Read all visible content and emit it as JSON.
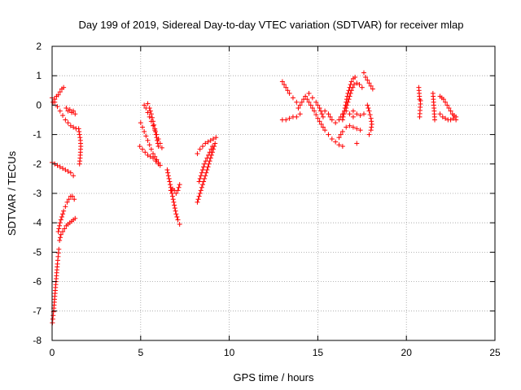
{
  "chart_data": {
    "type": "scatter",
    "title": "Day 199 of 2019, Sidereal Day-to-day VTEC variation (SDTVAR) for receiver mlap",
    "xlabel": "GPS time / hours",
    "ylabel": "SDTVAR / TECUs",
    "xlim": [
      0,
      25
    ],
    "ylim": [
      -8,
      2
    ],
    "xticks": [
      "0",
      "5",
      "10",
      "15",
      "20",
      "25"
    ],
    "yticks": [
      "-8",
      "-7",
      "-6",
      "-5",
      "-4",
      "-3",
      "-2",
      "-1",
      "0",
      "1",
      "2"
    ],
    "grid": true,
    "marker": "plus",
    "color": "#ff0000",
    "segments": [
      {
        "x": [
          0.0,
          0.15,
          0.3,
          0.45,
          0.6,
          0.75,
          0.9,
          1.05,
          1.2,
          1.35
        ],
        "y": [
          0.25,
          0.1,
          -0.05,
          -0.2,
          -0.35,
          -0.5,
          -0.6,
          -0.7,
          -0.75,
          -0.8
        ]
      },
      {
        "x": [
          0.05,
          0.15,
          0.25,
          0.35,
          0.45,
          0.55,
          0.65
        ],
        "y": [
          0.1,
          0.2,
          0.3,
          0.35,
          0.45,
          0.55,
          0.6
        ]
      },
      {
        "x": [
          0.8,
          0.9,
          1.0,
          1.1,
          1.2,
          1.3
        ],
        "y": [
          -0.1,
          -0.2,
          -0.15,
          -0.25,
          -0.2,
          -0.3
        ]
      },
      {
        "x": [
          1.5,
          1.55,
          1.6,
          1.62,
          1.6,
          1.58,
          1.55
        ],
        "y": [
          -0.8,
          -1.0,
          -1.2,
          -1.4,
          -1.6,
          -1.8,
          -2.0
        ]
      },
      {
        "x": [
          0.0,
          0.15,
          0.3,
          0.45,
          0.6,
          0.75,
          0.9,
          1.05,
          1.2
        ],
        "y": [
          -1.95,
          -2.0,
          -2.05,
          -2.1,
          -2.15,
          -2.2,
          -2.25,
          -2.3,
          -2.4
        ]
      },
      {
        "x": [
          0.02,
          0.06,
          0.1,
          0.14,
          0.18,
          0.22,
          0.26,
          0.3,
          0.34,
          0.38
        ],
        "y": [
          -7.4,
          -7.15,
          -6.9,
          -6.6,
          -6.3,
          -6.0,
          -5.7,
          -5.4,
          -5.15,
          -4.9
        ]
      },
      {
        "x": [
          0.42,
          0.5,
          0.6,
          0.7,
          0.8,
          0.9,
          1.0,
          1.1,
          1.2,
          1.3
        ],
        "y": [
          -4.6,
          -4.4,
          -4.3,
          -4.2,
          -4.1,
          -4.05,
          -4.0,
          -3.95,
          -3.9,
          -3.85
        ]
      },
      {
        "x": [
          0.35,
          0.45,
          0.55,
          0.65,
          0.75,
          0.85,
          0.95,
          1.05,
          1.15,
          1.25
        ],
        "y": [
          -4.3,
          -4.0,
          -3.8,
          -3.6,
          -3.45,
          -3.3,
          -3.2,
          -3.1,
          -3.1,
          -3.2
        ]
      },
      {
        "x": [
          5.0,
          5.1,
          5.2,
          5.3,
          5.4,
          5.5,
          5.6,
          5.7,
          5.8,
          5.9,
          6.0,
          6.1
        ],
        "y": [
          -0.6,
          -0.75,
          -0.9,
          -1.05,
          -1.2,
          -1.35,
          -1.5,
          -1.65,
          -1.75,
          -1.85,
          -1.95,
          -2.05
        ]
      },
      {
        "x": [
          4.95,
          5.1,
          5.25,
          5.4,
          5.55,
          5.7,
          5.85,
          6.0
        ],
        "y": [
          -1.4,
          -1.5,
          -1.6,
          -1.7,
          -1.75,
          -1.8,
          -1.9,
          -2.0
        ]
      },
      {
        "x": [
          5.2,
          5.3,
          5.4,
          5.5,
          5.6,
          5.7,
          5.8,
          5.9,
          6.0,
          6.1,
          6.2
        ],
        "y": [
          0.0,
          -0.1,
          -0.25,
          -0.4,
          -0.55,
          -0.7,
          -0.85,
          -1.0,
          -1.15,
          -1.3,
          -1.45
        ]
      },
      {
        "x": [
          5.4,
          5.5,
          5.6,
          5.7,
          5.8,
          5.9,
          6.0
        ],
        "y": [
          0.05,
          -0.1,
          -0.3,
          -0.55,
          -0.8,
          -1.1,
          -1.4
        ]
      },
      {
        "x": [
          6.5,
          6.6,
          6.7,
          6.8,
          6.9,
          7.0,
          7.1,
          7.2
        ],
        "y": [
          -2.2,
          -2.5,
          -2.8,
          -3.1,
          -3.4,
          -3.7,
          -3.9,
          -4.05
        ]
      },
      {
        "x": [
          6.7,
          6.8,
          6.9,
          7.0,
          7.1,
          7.2
        ],
        "y": [
          -2.9,
          -2.85,
          -2.9,
          -3.0,
          -2.9,
          -2.7
        ]
      },
      {
        "x": [
          8.2,
          8.3,
          8.4,
          8.5,
          8.6,
          8.7,
          8.8,
          8.9,
          9.0,
          9.1,
          9.2
        ],
        "y": [
          -3.3,
          -3.1,
          -2.9,
          -2.7,
          -2.5,
          -2.3,
          -2.1,
          -1.9,
          -1.7,
          -1.5,
          -1.3
        ]
      },
      {
        "x": [
          8.2,
          8.35,
          8.5,
          8.65,
          8.8,
          8.95,
          9.1,
          9.25
        ],
        "y": [
          -1.65,
          -1.5,
          -1.4,
          -1.3,
          -1.25,
          -1.2,
          -1.15,
          -1.1
        ]
      },
      {
        "x": [
          8.3,
          8.45,
          8.6,
          8.75,
          8.9,
          9.05
        ],
        "y": [
          -2.6,
          -2.3,
          -2.0,
          -1.8,
          -1.6,
          -1.4
        ]
      },
      {
        "x": [
          13.0,
          13.2,
          13.4,
          13.6,
          13.8
        ],
        "y": [
          0.8,
          0.6,
          0.4,
          0.25,
          0.1
        ]
      },
      {
        "x": [
          13.0,
          13.2,
          13.4,
          13.6,
          13.8,
          14.0
        ],
        "y": [
          -0.5,
          -0.5,
          -0.45,
          -0.4,
          -0.4,
          -0.3
        ]
      },
      {
        "x": [
          13.9,
          14.1,
          14.3,
          14.5,
          14.7,
          14.9,
          15.1,
          15.3
        ],
        "y": [
          -0.1,
          0.1,
          0.3,
          0.4,
          0.25,
          0.1,
          -0.1,
          -0.4
        ]
      },
      {
        "x": [
          14.4,
          14.6,
          14.8,
          15.0,
          15.2,
          15.4,
          15.6,
          15.8,
          16.0,
          16.2,
          16.4
        ],
        "y": [
          0.2,
          0.0,
          -0.2,
          -0.45,
          -0.65,
          -0.85,
          -1.0,
          -1.15,
          -1.25,
          -1.35,
          -1.4
        ]
      },
      {
        "x": [
          15.4,
          15.6,
          15.8,
          16.0,
          16.2,
          16.4,
          16.6,
          16.8,
          17.0
        ],
        "y": [
          -0.2,
          -0.3,
          -0.5,
          -0.6,
          -0.5,
          -0.3,
          -0.2,
          -0.3,
          -0.4
        ]
      },
      {
        "x": [
          16.2,
          16.4,
          16.6,
          16.8,
          17.0,
          17.2,
          17.4
        ],
        "y": [
          -1.1,
          -0.9,
          -0.75,
          -0.7,
          -0.75,
          -0.8,
          -0.85
        ]
      },
      {
        "x": [
          16.4,
          16.5,
          16.6,
          16.7,
          16.8,
          16.9,
          17.0,
          17.1
        ],
        "y": [
          -0.5,
          -0.2,
          0.1,
          0.4,
          0.6,
          0.8,
          0.9,
          0.95
        ]
      },
      {
        "x": [
          16.6,
          16.75,
          16.9,
          17.05,
          17.2,
          17.35,
          17.5
        ],
        "y": [
          -0.1,
          0.2,
          0.5,
          0.7,
          0.75,
          0.7,
          0.6
        ]
      },
      {
        "x": [
          17.0,
          17.2,
          17.4,
          17.6
        ],
        "y": [
          -0.2,
          -0.3,
          -0.35,
          -0.3
        ]
      },
      {
        "x": [
          17.2
        ],
        "y": [
          -1.3
        ]
      },
      {
        "x": [
          17.6,
          17.7,
          17.8,
          17.9,
          18.0,
          18.1
        ],
        "y": [
          1.1,
          0.95,
          0.85,
          0.75,
          0.65,
          0.55
        ]
      },
      {
        "x": [
          17.8,
          17.9,
          18.0,
          18.05,
          18.0,
          17.9
        ],
        "y": [
          0.0,
          -0.2,
          -0.45,
          -0.65,
          -0.85,
          -1.0
        ]
      },
      {
        "x": [
          20.7,
          20.75,
          20.8,
          20.75
        ],
        "y": [
          0.6,
          0.2,
          0.15,
          -0.4
        ]
      },
      {
        "x": [
          21.5,
          21.55,
          21.6
        ],
        "y": [
          0.4,
          0.0,
          -0.5
        ]
      },
      {
        "x": [
          21.9,
          22.0,
          22.1,
          22.2,
          22.3,
          22.4,
          22.5,
          22.6,
          22.7,
          22.8
        ],
        "y": [
          0.3,
          0.25,
          0.2,
          0.1,
          0.0,
          -0.1,
          -0.2,
          -0.3,
          -0.35,
          -0.4
        ]
      },
      {
        "x": [
          21.9,
          22.05,
          22.2,
          22.35,
          22.5,
          22.65,
          22.8
        ],
        "y": [
          -0.3,
          -0.4,
          -0.45,
          -0.5,
          -0.5,
          -0.45,
          -0.5
        ]
      }
    ]
  }
}
